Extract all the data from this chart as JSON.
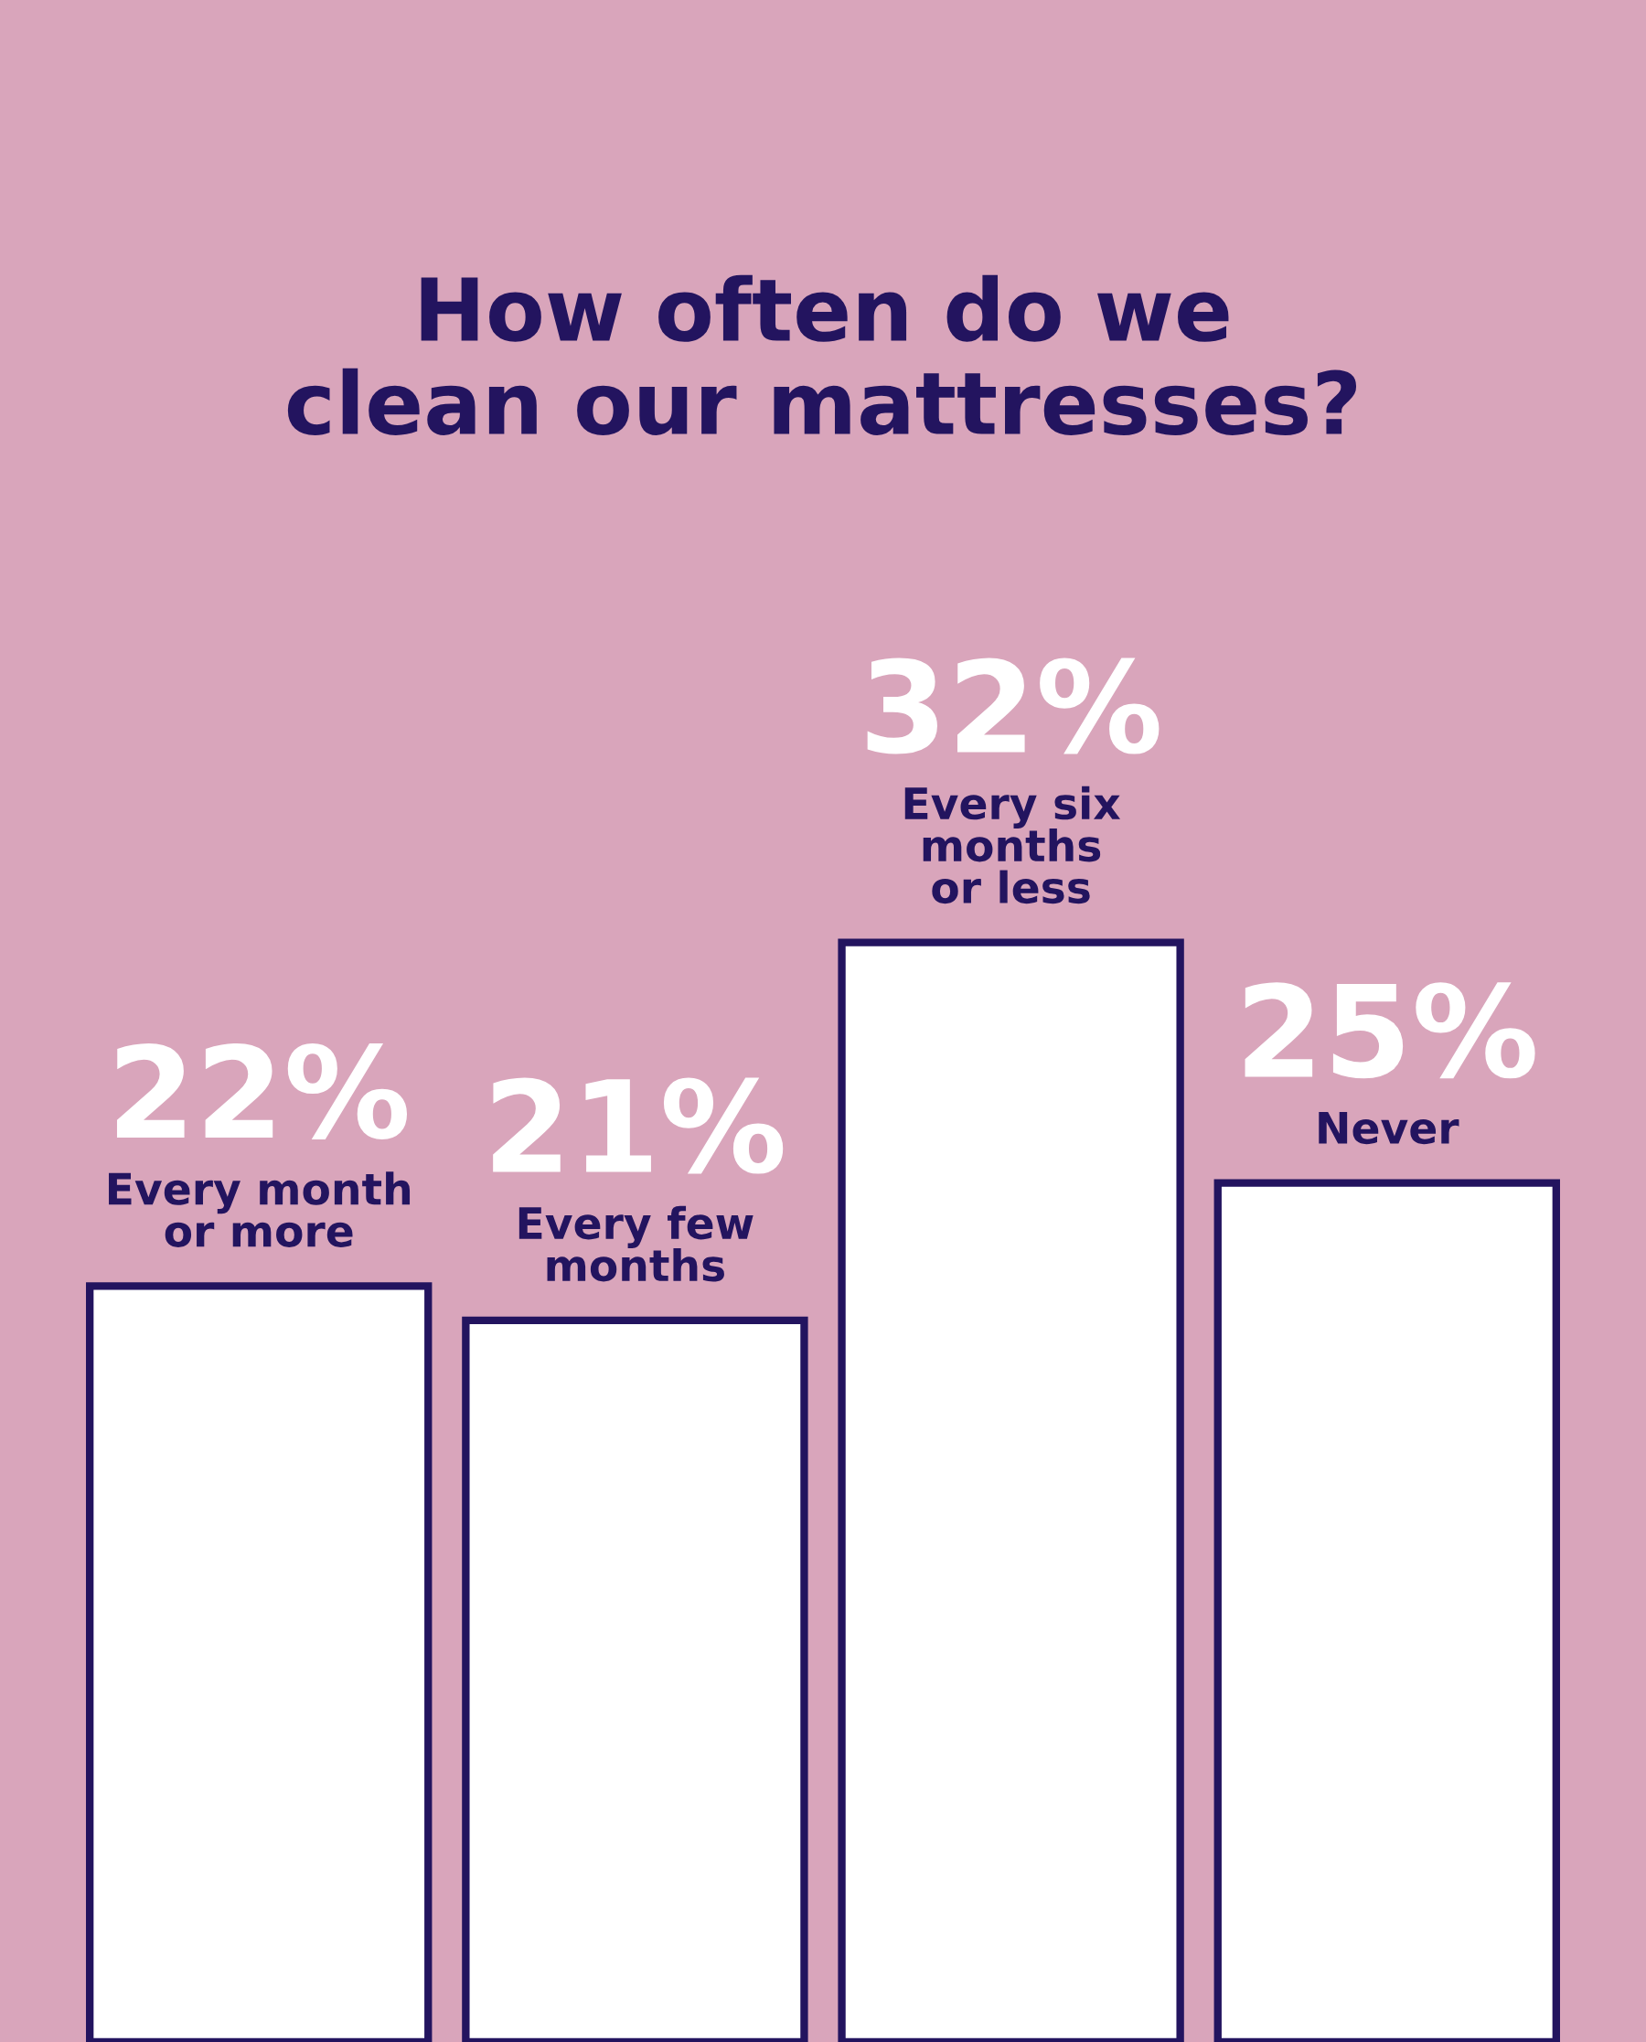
{
  "chart_data": {
    "type": "bar",
    "title": "How often do we\nclean our mattresses?",
    "categories": [
      "Every month\nor more",
      "Every few\nmonths",
      "Every six\nmonths\nor less",
      "Never"
    ],
    "values": [
      22,
      21,
      32,
      25
    ],
    "value_labels": [
      "22%",
      "21%",
      "32%",
      "25%"
    ],
    "color": "#ffffff",
    "tick_labels": "x"
  }
}
